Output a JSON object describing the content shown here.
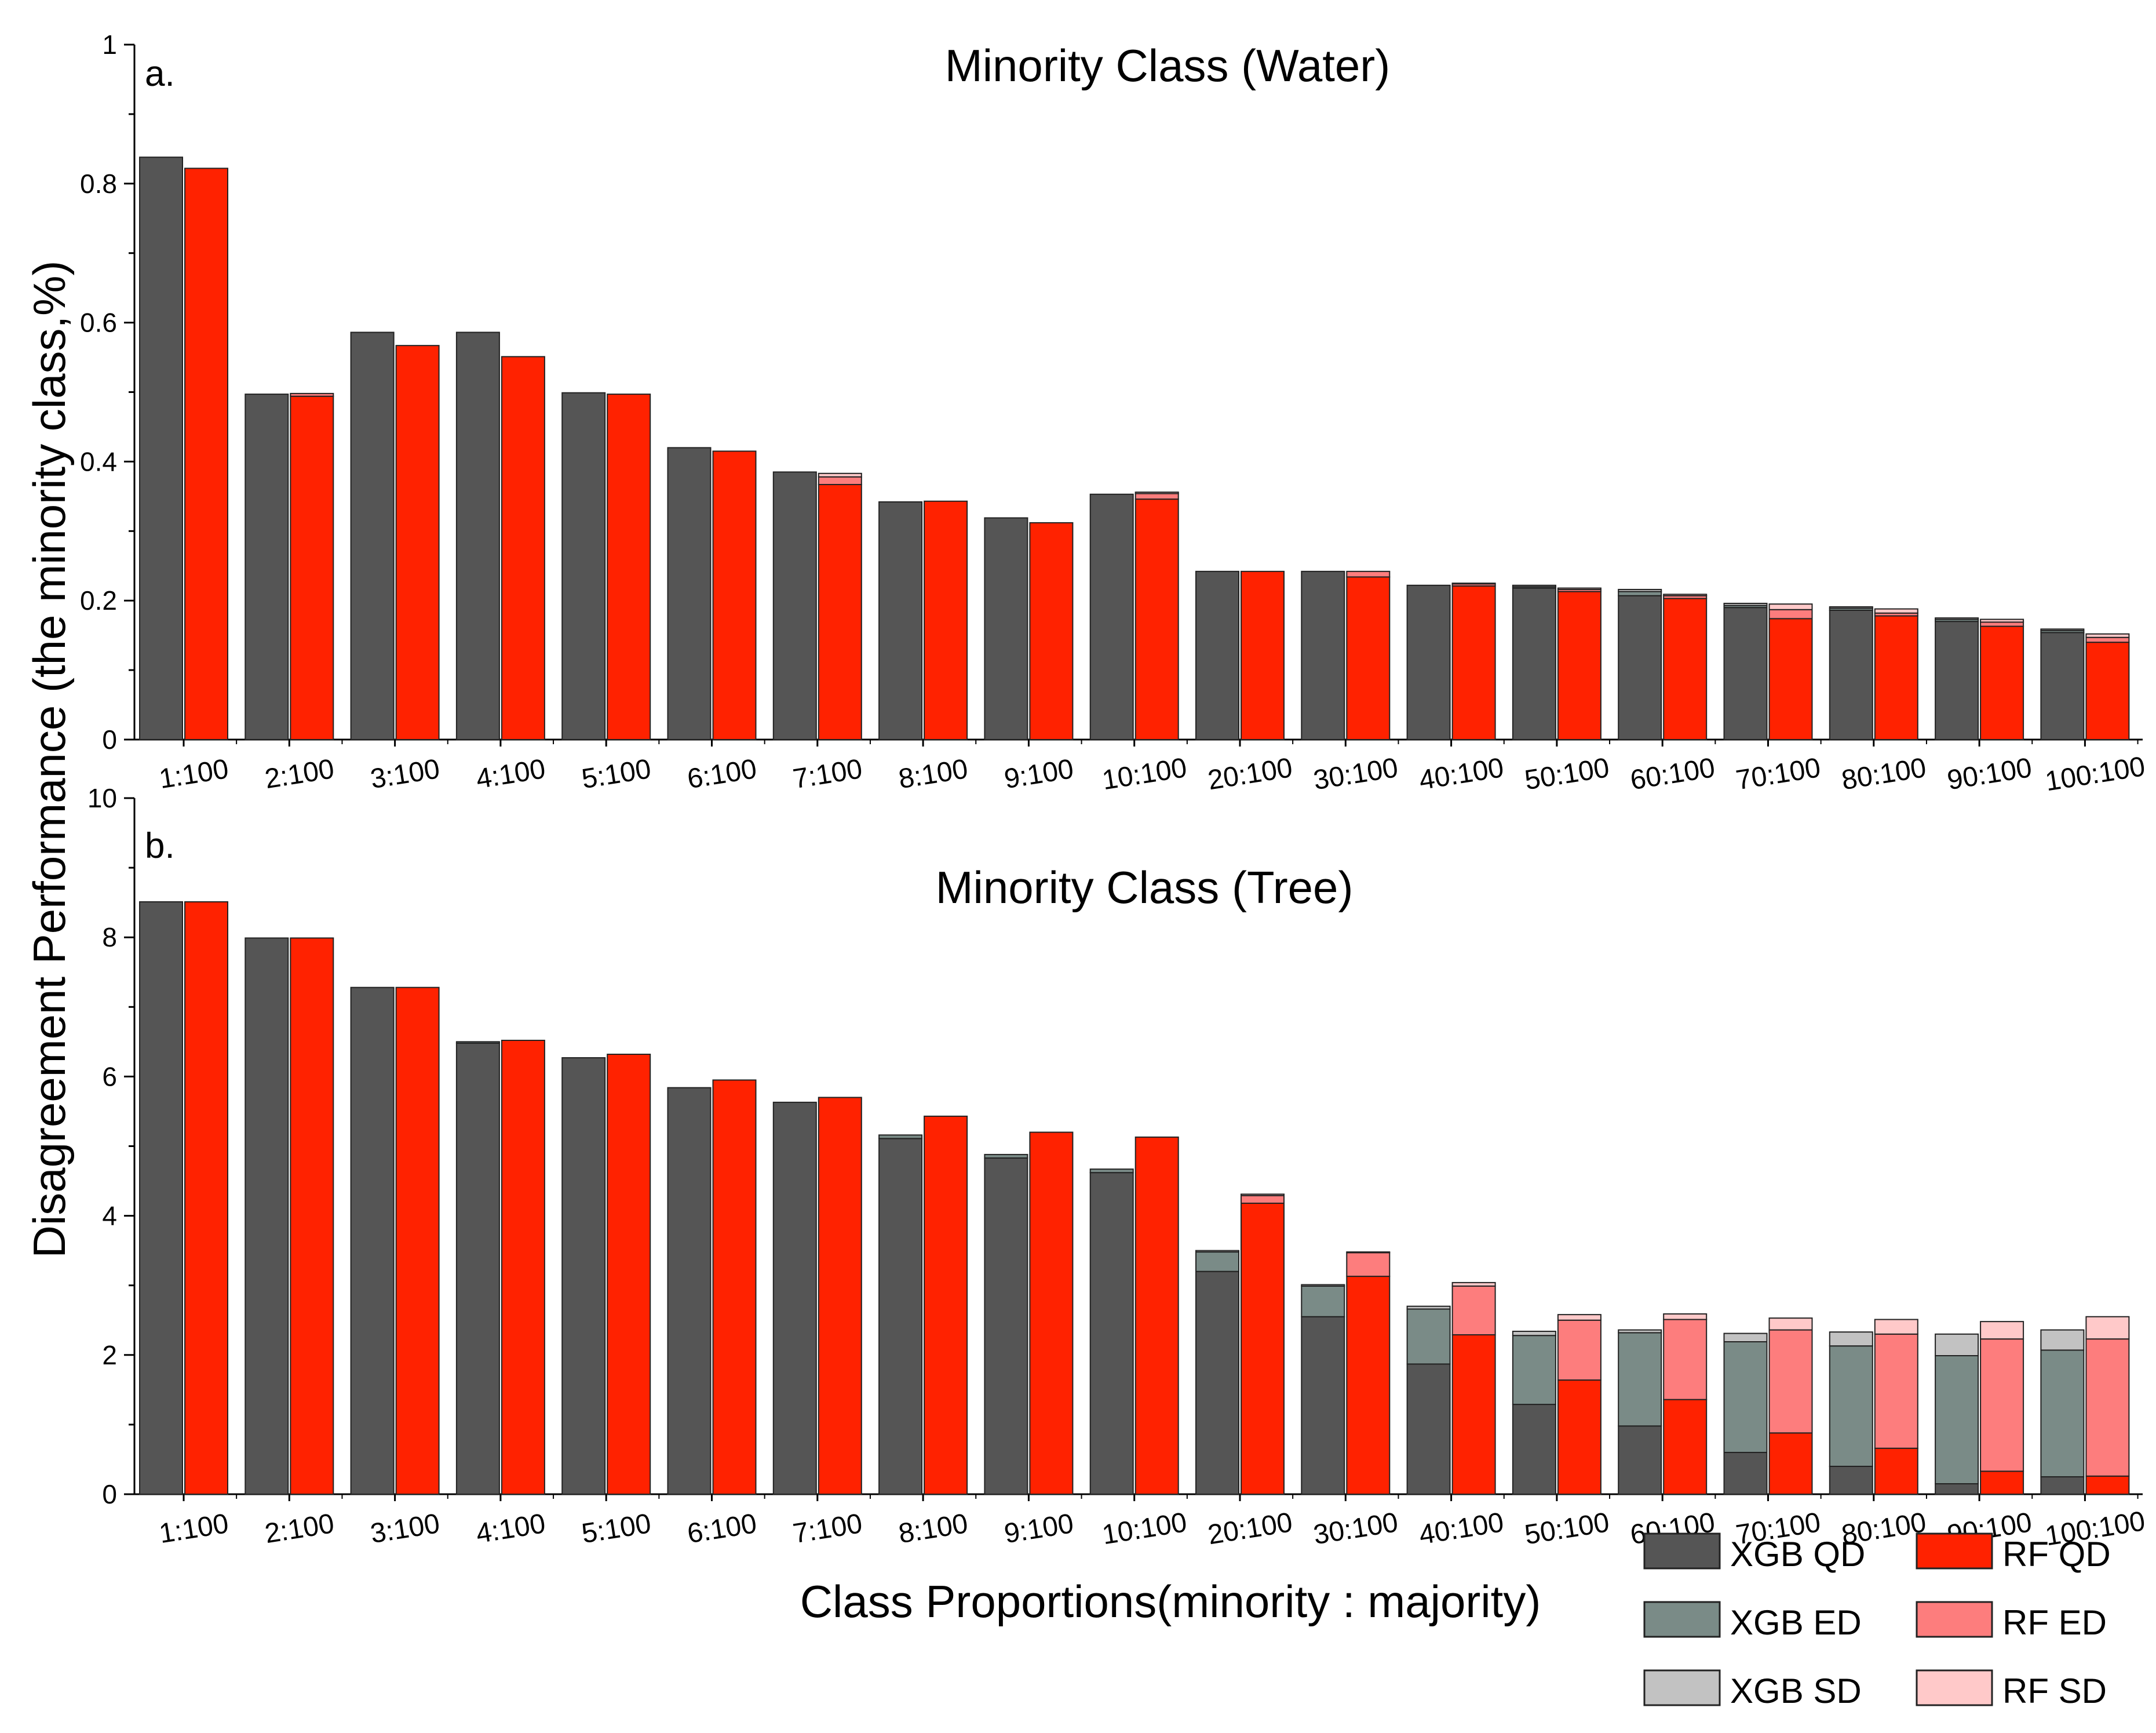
{
  "figure": {
    "ylabel": "Disagreement Performance (the minority class,%)",
    "xlabel": "Class Proportions(minority : majority)"
  },
  "colors": {
    "xgb_qd": "#555555",
    "xgb_ed": "#7a8b87",
    "xgb_sd": "#c2c2c2",
    "rf_qd": "#ff2200",
    "rf_ed": "#fd7d7d",
    "rf_sd": "#ffc9c9"
  },
  "legend": [
    {
      "label": "XGB QD",
      "color_key": "xgb_qd"
    },
    {
      "label": "RF QD",
      "color_key": "rf_qd"
    },
    {
      "label": "XGB ED",
      "color_key": "xgb_ed"
    },
    {
      "label": "RF ED",
      "color_key": "rf_ed"
    },
    {
      "label": "XGB SD",
      "color_key": "xgb_sd"
    },
    {
      "label": "RF SD",
      "color_key": "rf_sd"
    }
  ],
  "chart_data": [
    {
      "type": "bar",
      "stacked": true,
      "panel_label": "a.",
      "title": "Minority Class (Water)",
      "ylim": [
        0,
        1
      ],
      "yticks": [
        "0",
        "0.2",
        "0.4",
        "0.6",
        "0.8",
        "1"
      ],
      "categories": [
        "1:100",
        "2:100",
        "3:100",
        "4:100",
        "5:100",
        "6:100",
        "7:100",
        "8:100",
        "9:100",
        "10:100",
        "20:100",
        "30:100",
        "40:100",
        "50:100",
        "60:100",
        "70:100",
        "80:100",
        "90:100",
        "100:100"
      ],
      "series": [
        {
          "name": "XGB QD",
          "group": "XGB",
          "values": [
            0.838,
            0.497,
            0.586,
            0.586,
            0.499,
            0.42,
            0.385,
            0.342,
            0.319,
            0.353,
            0.242,
            0.242,
            0.222,
            0.218,
            0.207,
            0.19,
            0.186,
            0.17,
            0.154
          ]
        },
        {
          "name": "XGB ED",
          "group": "XGB",
          "values": [
            0,
            0,
            0,
            0,
            0,
            0,
            0,
            0,
            0,
            0,
            0,
            0,
            0,
            0.002,
            0.006,
            0.003,
            0.003,
            0.003,
            0.003
          ]
        },
        {
          "name": "XGB SD",
          "group": "XGB",
          "values": [
            0,
            0,
            0,
            0,
            0,
            0,
            0,
            0,
            0,
            0,
            0,
            0,
            0,
            0.002,
            0.003,
            0.003,
            0.002,
            0.002,
            0.002
          ]
        },
        {
          "name": "RF QD",
          "group": "RF",
          "values": [
            0.822,
            0.494,
            0.567,
            0.551,
            0.497,
            0.415,
            0.367,
            0.343,
            0.312,
            0.346,
            0.242,
            0.234,
            0.221,
            0.213,
            0.203,
            0.174,
            0.178,
            0.163,
            0.14
          ]
        },
        {
          "name": "RF ED",
          "group": "RF",
          "values": [
            0,
            0.004,
            0,
            0,
            0,
            0,
            0.011,
            0,
            0,
            0.008,
            0,
            0.008,
            0.003,
            0.003,
            0.004,
            0.013,
            0.004,
            0.006,
            0.007
          ]
        },
        {
          "name": "RF SD",
          "group": "RF",
          "values": [
            0,
            0,
            0,
            0,
            0,
            0,
            0.005,
            0,
            0,
            0.002,
            0,
            0,
            0.001,
            0.002,
            0.002,
            0.008,
            0.006,
            0.004,
            0.005
          ]
        }
      ]
    },
    {
      "type": "bar",
      "stacked": true,
      "panel_label": "b.",
      "title": "Minority Class (Tree)",
      "ylim": [
        0,
        10
      ],
      "yticks": [
        "0",
        "2",
        "4",
        "6",
        "8",
        "10"
      ],
      "categories": [
        "1:100",
        "2:100",
        "3:100",
        "4:100",
        "5:100",
        "6:100",
        "7:100",
        "8:100",
        "9:100",
        "10:100",
        "20:100",
        "30:100",
        "40:100",
        "50:100",
        "60:100",
        "70:100",
        "80:100",
        "90:100",
        "100:100"
      ],
      "series": [
        {
          "name": "XGB QD",
          "group": "XGB",
          "values": [
            8.51,
            7.99,
            7.28,
            6.48,
            6.27,
            5.84,
            5.63,
            5.11,
            4.83,
            4.62,
            3.2,
            2.55,
            1.87,
            1.29,
            0.98,
            0.6,
            0.4,
            0.15,
            0.25
          ]
        },
        {
          "name": "XGB ED",
          "group": "XGB",
          "values": [
            0,
            0,
            0,
            0.02,
            0,
            0,
            0,
            0.05,
            0.05,
            0.05,
            0.28,
            0.44,
            0.79,
            0.99,
            1.34,
            1.59,
            1.73,
            1.84,
            1.82
          ]
        },
        {
          "name": "XGB SD",
          "group": "XGB",
          "values": [
            0,
            0,
            0,
            0,
            0,
            0,
            0,
            0,
            0,
            0,
            0.02,
            0.02,
            0.04,
            0.06,
            0.04,
            0.12,
            0.2,
            0.31,
            0.29
          ]
        },
        {
          "name": "RF QD",
          "group": "RF",
          "values": [
            8.51,
            7.99,
            7.28,
            6.52,
            6.32,
            5.95,
            5.7,
            5.43,
            5.2,
            5.13,
            4.18,
            3.13,
            2.29,
            1.64,
            1.36,
            0.88,
            0.66,
            0.33,
            0.26
          ]
        },
        {
          "name": "RF ED",
          "group": "RF",
          "values": [
            0,
            0,
            0,
            0,
            0,
            0,
            0,
            0,
            0,
            0,
            0.11,
            0.34,
            0.7,
            0.86,
            1.15,
            1.48,
            1.64,
            1.9,
            1.97
          ]
        },
        {
          "name": "RF SD",
          "group": "RF",
          "values": [
            0,
            0,
            0,
            0,
            0,
            0,
            0,
            0,
            0,
            0,
            0.02,
            0.01,
            0.05,
            0.08,
            0.08,
            0.17,
            0.21,
            0.25,
            0.32
          ]
        }
      ]
    }
  ]
}
